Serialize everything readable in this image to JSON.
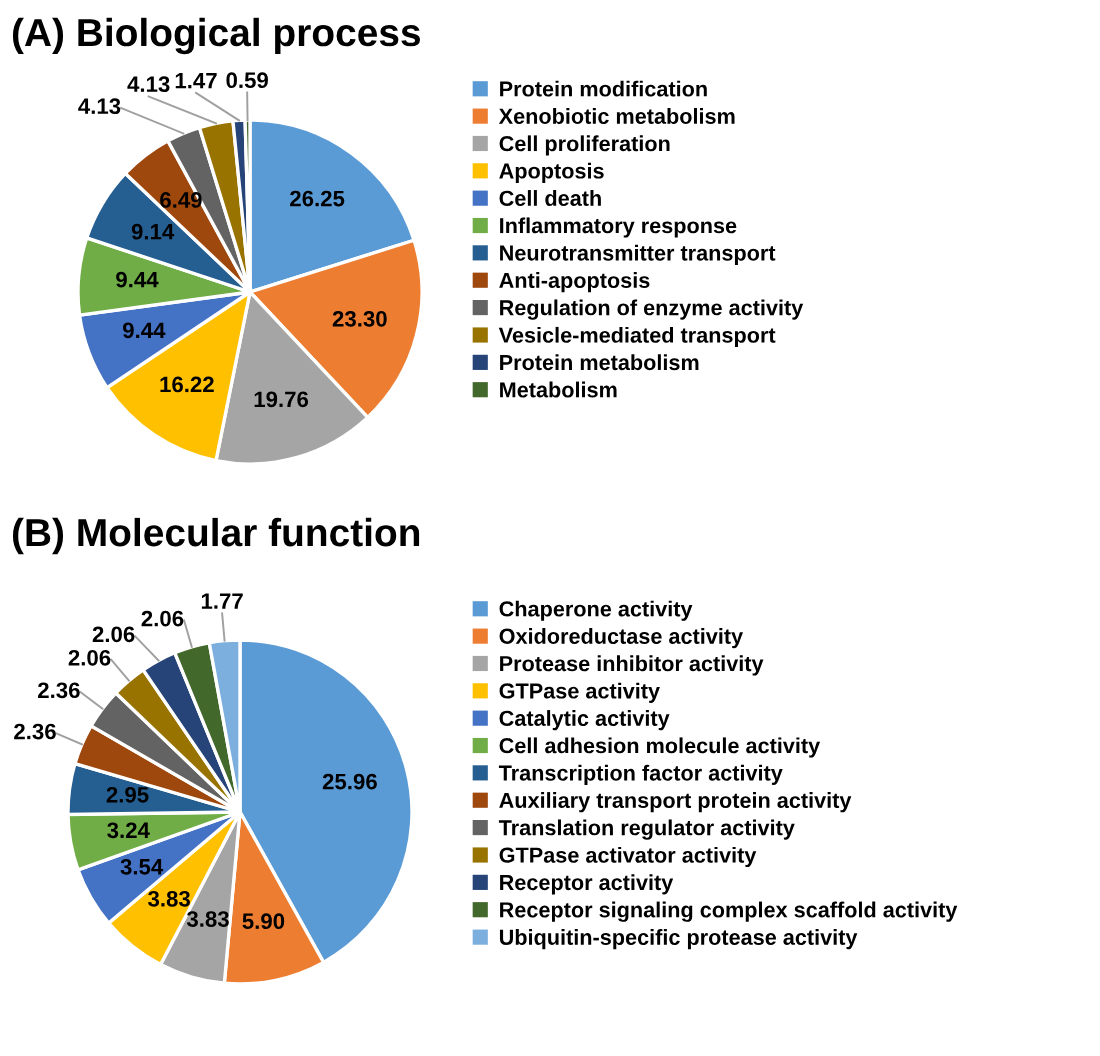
{
  "chart_data": [
    {
      "type": "pie",
      "title": "(A) Biological process",
      "categories": [
        "Protein modification",
        "Xenobiotic metabolism",
        "Cell proliferation",
        "Apoptosis",
        "Cell death",
        "Inflammatory response",
        "Neurotransmitter transport",
        "Anti-apoptosis",
        "Regulation of enzyme activity",
        "Vesicle-mediated transport",
        "Protein metabolism",
        "Metabolism"
      ],
      "values": [
        26.25,
        23.3,
        19.76,
        16.22,
        9.44,
        9.44,
        9.14,
        6.49,
        4.13,
        4.13,
        1.47,
        0.59
      ],
      "value_labels": [
        "26.25",
        "23.30",
        "19.76",
        "16.22",
        "9.44",
        "9.44",
        "9.14",
        "6.49",
        "4.13",
        "4.13",
        "1.47",
        "0.59"
      ],
      "colors": [
        "#5b9bd5",
        "#ed7d31",
        "#a5a5a5",
        "#ffc000",
        "#4472c4",
        "#70ad47",
        "#255e91",
        "#9e480e",
        "#636363",
        "#997300",
        "#264478",
        "#43682b"
      ],
      "legend": "right"
    },
    {
      "type": "pie",
      "title": "(B) Molecular function",
      "categories": [
        "Chaperone activity",
        "Oxidoreductase activity",
        "Protease inhibitor activity",
        "GTPase activity",
        "Catalytic activity",
        "Cell adhesion molecule activity",
        "Transcription factor activity",
        "Auxiliary transport protein activity",
        "Translation regulator activity",
        "GTPase activator activity",
        "Receptor activity",
        "Receptor signaling complex scaffold activity",
        "Ubiquitin-specific protease activity"
      ],
      "values": [
        25.96,
        5.9,
        3.83,
        3.83,
        3.54,
        3.24,
        2.95,
        2.36,
        2.36,
        2.06,
        2.06,
        2.06,
        1.77
      ],
      "value_labels": [
        "25.96",
        "5.90",
        "3.83",
        "3.83",
        "3.54",
        "3.24",
        "2.95",
        "2.36",
        "2.36",
        "2.06",
        "2.06",
        "2.06",
        "1.77"
      ],
      "colors": [
        "#5b9bd5",
        "#ed7d31",
        "#a5a5a5",
        "#ffc000",
        "#4472c4",
        "#70ad47",
        "#255e91",
        "#9e480e",
        "#636363",
        "#997300",
        "#264478",
        "#43682b",
        "#7cafdd"
      ],
      "legend": "right"
    }
  ]
}
